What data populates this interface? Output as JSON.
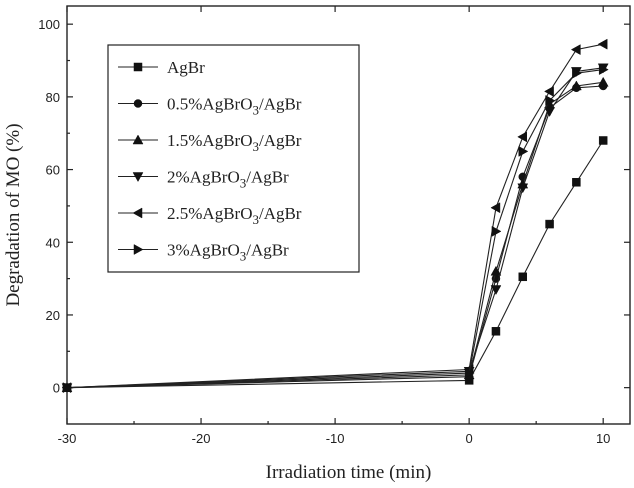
{
  "chart_data": {
    "type": "line",
    "xlabel": "Irradiation time (min)",
    "ylabel": "Degradation of MO (%)",
    "xlim": [
      -30,
      12
    ],
    "ylim": [
      -10,
      105
    ],
    "xticks": [
      -30,
      -20,
      -10,
      0,
      10
    ],
    "yticks": [
      0,
      20,
      40,
      60,
      80,
      100
    ],
    "x": [
      -30,
      0,
      2,
      4,
      6,
      8,
      10
    ],
    "grid": false,
    "legend_position": "top-left",
    "series": [
      {
        "name": "AgBr",
        "marker": "square",
        "values": [
          0,
          2,
          15.5,
          30.5,
          45,
          56.5,
          68
        ]
      },
      {
        "name": "0.5%AgBrO3/AgBr",
        "name_main": "0.5%AgBrO",
        "name_sub": "3",
        "name_tail": "/AgBr",
        "marker": "circle",
        "values": [
          0,
          3,
          30,
          58,
          77,
          82.5,
          83
        ]
      },
      {
        "name": "1.5%AgBrO3/AgBr",
        "name_main": "1.5%AgBrO",
        "name_sub": "3",
        "name_tail": "/AgBr",
        "marker": "triangle-up",
        "values": [
          0,
          3.5,
          32,
          56,
          78,
          83,
          84
        ]
      },
      {
        "name": "2%AgBrO3/AgBr",
        "name_main": "2%AgBrO",
        "name_sub": "3",
        "name_tail": "/AgBr",
        "marker": "triangle-down",
        "values": [
          0,
          4.5,
          27,
          55,
          76,
          87,
          88
        ]
      },
      {
        "name": "2.5%AgBrO3/AgBr",
        "name_main": "2.5%AgBrO",
        "name_sub": "3",
        "name_tail": "/AgBr",
        "marker": "triangle-left",
        "values": [
          0,
          5,
          49.5,
          69,
          81.5,
          93,
          94.5
        ]
      },
      {
        "name": "3%AgBrO3/AgBr",
        "name_main": "3%AgBrO",
        "name_sub": "3",
        "name_tail": "/AgBr",
        "marker": "triangle-right",
        "values": [
          0,
          4,
          43,
          65,
          79,
          86.5,
          87.5
        ]
      }
    ]
  }
}
